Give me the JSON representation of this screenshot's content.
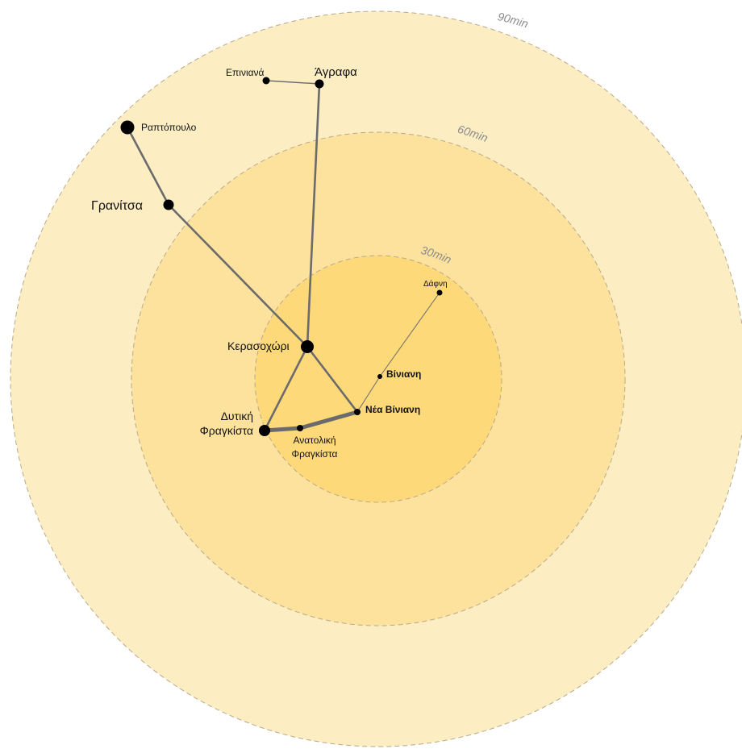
{
  "colors": {
    "ring_90": "#fcedc3",
    "ring_60": "#fde29e",
    "ring_30": "#fed97a",
    "ring_stroke": "#b9a98a",
    "route": "#6b6b6b",
    "node": "#000000"
  },
  "rings": [
    {
      "id": "ring-90",
      "label": "90min"
    },
    {
      "id": "ring-60",
      "label": "60min"
    },
    {
      "id": "ring-30",
      "label": "30min"
    }
  ],
  "places": [
    {
      "id": "epiniana",
      "name": "Επινιανά"
    },
    {
      "id": "agrafa",
      "name": "Άγραφα"
    },
    {
      "id": "raptopoulo",
      "name": "Ραπτόπουλο"
    },
    {
      "id": "granitsa",
      "name": "Γρανίτσα"
    },
    {
      "id": "dafni",
      "name": "Δάφνη"
    },
    {
      "id": "viniani",
      "name": "Βίνιανη"
    },
    {
      "id": "kerasochori",
      "name": "Κερασοχώρι"
    },
    {
      "id": "nea-viniani",
      "name": "Νέα Βίνιανη"
    },
    {
      "id": "dytiki-fragkista",
      "name": "Δυτική Φραγκίστα"
    },
    {
      "id": "anatoliki-fragkista",
      "name": "Ανατολική Φραγκίστα"
    }
  ],
  "routes": [
    {
      "from": "epiniana",
      "to": "agrafa"
    },
    {
      "from": "agrafa",
      "to": "kerasochori"
    },
    {
      "from": "raptopoulo",
      "to": "granitsa"
    },
    {
      "from": "granitsa",
      "to": "kerasochori"
    },
    {
      "from": "kerasochori",
      "to": "dytiki-fragkista"
    },
    {
      "from": "kerasochori",
      "to": "nea-viniani"
    },
    {
      "from": "dytiki-fragkista",
      "to": "anatoliki-fragkista"
    },
    {
      "from": "anatoliki-fragkista",
      "to": "nea-viniani"
    },
    {
      "from": "nea-viniani",
      "to": "viniani"
    },
    {
      "from": "viniani",
      "to": "dafni"
    }
  ]
}
